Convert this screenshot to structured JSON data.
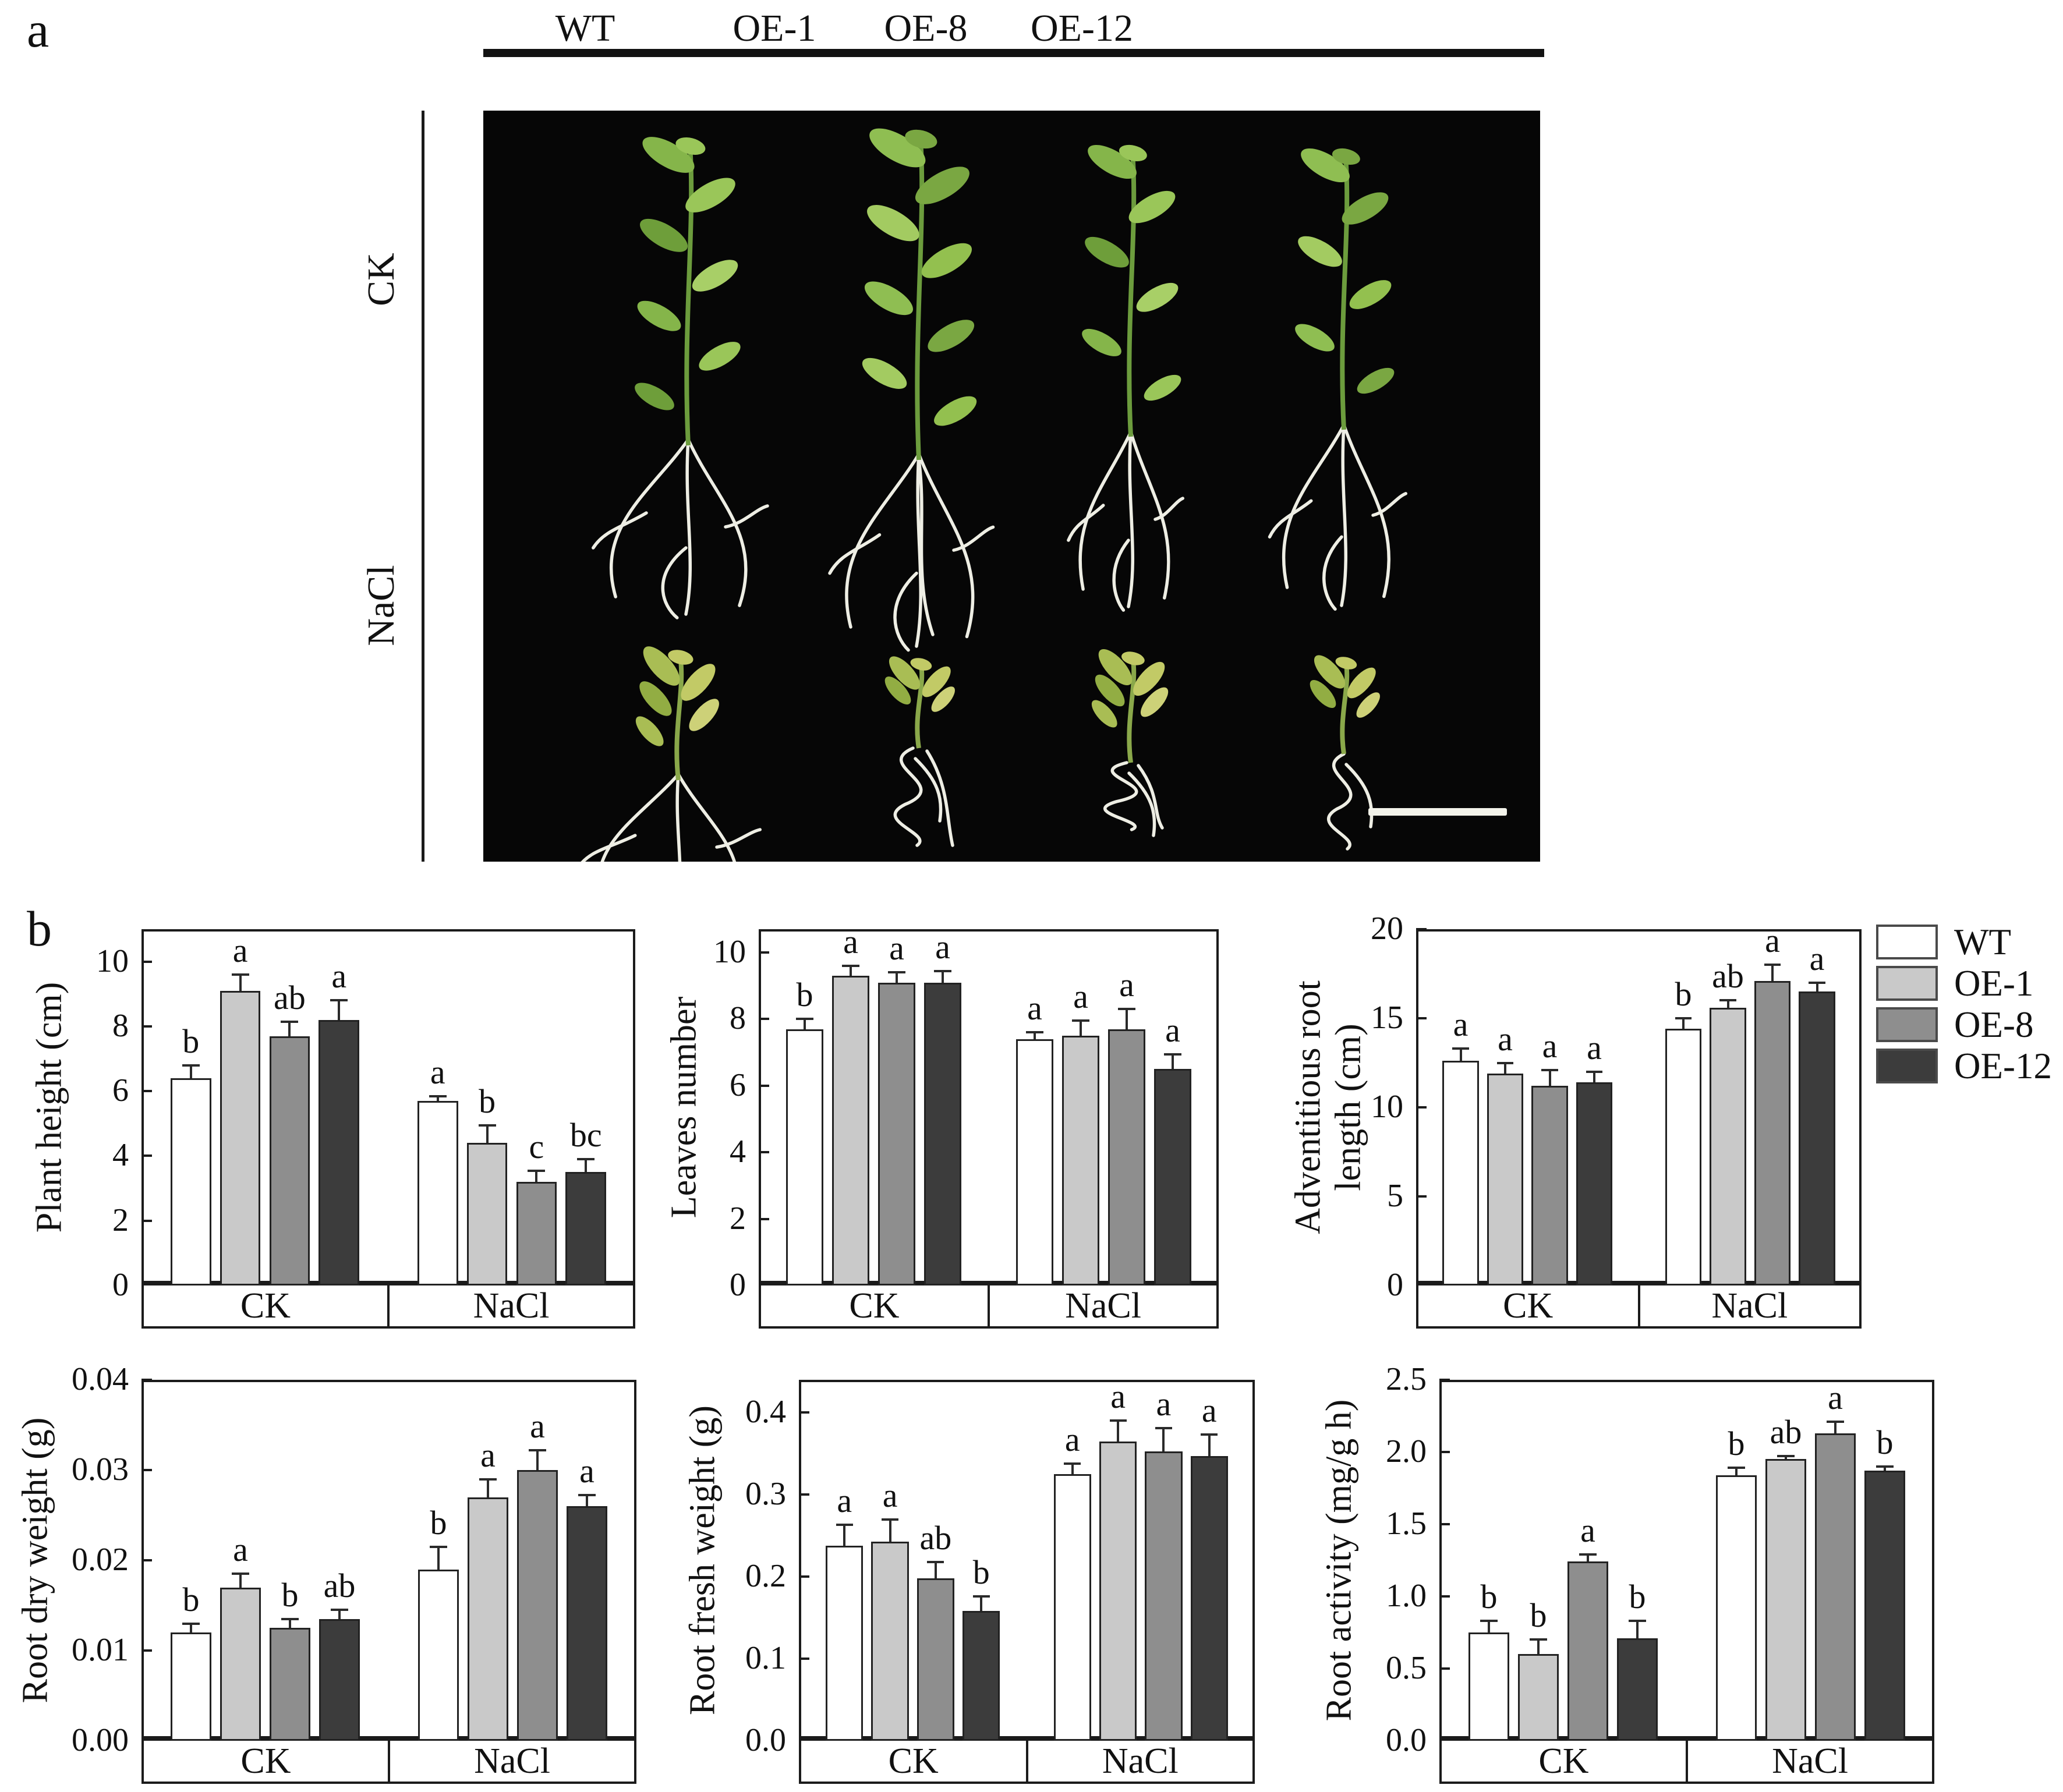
{
  "figure": {
    "panel_a_label": "a",
    "panel_b_label": "b"
  },
  "panel_a": {
    "column_labels": [
      "WT",
      "OE-1",
      "OE-8",
      "OE-12"
    ],
    "row_labels": [
      "CK",
      "NaCl"
    ],
    "photo_background": "#060606",
    "scale_bar_color": "#f3f3ea"
  },
  "legend": {
    "items": [
      {
        "label": "WT",
        "color": "#ffffff"
      },
      {
        "label": "OE-1",
        "color": "#c9c9c9"
      },
      {
        "label": "OE-8",
        "color": "#8e8e8e"
      },
      {
        "label": "OE-12",
        "color": "#3c3c3c"
      }
    ]
  },
  "chart_data": [
    {
      "type": "bar",
      "ylabel_lines": [
        "Plant height (cm)"
      ],
      "ylim": [
        0,
        11
      ],
      "yticks": [
        {
          "v": 0,
          "label": "0"
        },
        {
          "v": 2,
          "label": "2"
        },
        {
          "v": 4,
          "label": "4"
        },
        {
          "v": 6,
          "label": "6"
        },
        {
          "v": 8,
          "label": "8"
        },
        {
          "v": 10,
          "label": "10"
        }
      ],
      "groups": [
        "CK",
        "NaCl"
      ],
      "series": [
        "WT",
        "OE-1",
        "OE-8",
        "OE-12"
      ],
      "values": [
        [
          6.4,
          9.1,
          7.7,
          8.2
        ],
        [
          5.7,
          4.4,
          3.2,
          3.5
        ]
      ],
      "errors": [
        [
          0.4,
          0.5,
          0.45,
          0.6
        ],
        [
          0.15,
          0.55,
          0.35,
          0.4
        ]
      ],
      "sig_letters": [
        [
          "b",
          "a",
          "ab",
          "a"
        ],
        [
          "a",
          "b",
          "c",
          "bc"
        ]
      ]
    },
    {
      "type": "bar",
      "ylabel_lines": [
        "Leaves number"
      ],
      "ylim": [
        0,
        10.7
      ],
      "yticks": [
        {
          "v": 0,
          "label": "0"
        },
        {
          "v": 2,
          "label": "2"
        },
        {
          "v": 4,
          "label": "4"
        },
        {
          "v": 6,
          "label": "6"
        },
        {
          "v": 8,
          "label": "8"
        },
        {
          "v": 10,
          "label": "10"
        }
      ],
      "groups": [
        "CK",
        "NaCl"
      ],
      "series": [
        "WT",
        "OE-1",
        "OE-8",
        "OE-12"
      ],
      "values": [
        [
          7.7,
          9.3,
          9.1,
          9.1
        ],
        [
          7.4,
          7.5,
          7.7,
          6.5
        ]
      ],
      "errors": [
        [
          0.3,
          0.3,
          0.3,
          0.35
        ],
        [
          0.2,
          0.45,
          0.6,
          0.45
        ]
      ],
      "sig_letters": [
        [
          "b",
          "a",
          "a",
          "a"
        ],
        [
          "a",
          "a",
          "a",
          "a"
        ]
      ]
    },
    {
      "type": "bar",
      "ylabel_lines": [
        "Adventitious root",
        "length (cm)"
      ],
      "ylim": [
        0,
        20
      ],
      "yticks": [
        {
          "v": 0,
          "label": "0"
        },
        {
          "v": 5,
          "label": "5"
        },
        {
          "v": 10,
          "label": "10"
        },
        {
          "v": 15,
          "label": "15"
        },
        {
          "v": 20,
          "label": "20"
        }
      ],
      "groups": [
        "CK",
        "NaCl"
      ],
      "series": [
        "WT",
        "OE-1",
        "OE-8",
        "OE-12"
      ],
      "values": [
        [
          12.6,
          11.9,
          11.2,
          11.4
        ],
        [
          14.4,
          15.6,
          17.1,
          16.5
        ]
      ],
      "errors": [
        [
          0.7,
          0.6,
          0.9,
          0.6
        ],
        [
          0.6,
          0.4,
          0.9,
          0.5
        ]
      ],
      "sig_letters": [
        [
          "a",
          "a",
          "a",
          "a"
        ],
        [
          "b",
          "ab",
          "a",
          "a"
        ]
      ]
    },
    {
      "type": "bar",
      "ylabel_lines": [
        "Root dry weight (g)"
      ],
      "ylim": [
        0,
        0.04
      ],
      "yticks": [
        {
          "v": 0,
          "label": "0.00"
        },
        {
          "v": 0.01,
          "label": "0.01"
        },
        {
          "v": 0.02,
          "label": "0.02"
        },
        {
          "v": 0.03,
          "label": "0.03"
        },
        {
          "v": 0.04,
          "label": "0.04"
        }
      ],
      "groups": [
        "CK",
        "NaCl"
      ],
      "series": [
        "WT",
        "OE-1",
        "OE-8",
        "OE-12"
      ],
      "values": [
        [
          0.012,
          0.017,
          0.0125,
          0.0135
        ],
        [
          0.019,
          0.027,
          0.03,
          0.026
        ]
      ],
      "errors": [
        [
          0.001,
          0.0015,
          0.001,
          0.001
        ],
        [
          0.0025,
          0.002,
          0.0022,
          0.0012
        ]
      ],
      "sig_letters": [
        [
          "b",
          "a",
          "b",
          "ab"
        ],
        [
          "b",
          "a",
          "a",
          "a"
        ]
      ]
    },
    {
      "type": "bar",
      "ylabel_lines": [
        "Root fresh weight (g)"
      ],
      "ylim": [
        0,
        0.44
      ],
      "yticks": [
        {
          "v": 0,
          "label": "0.0"
        },
        {
          "v": 0.1,
          "label": "0.1"
        },
        {
          "v": 0.2,
          "label": "0.2"
        },
        {
          "v": 0.3,
          "label": "0.3"
        },
        {
          "v": 0.4,
          "label": "0.4"
        }
      ],
      "groups": [
        "CK",
        "NaCl"
      ],
      "series": [
        "WT",
        "OE-1",
        "OE-8",
        "OE-12"
      ],
      "values": [
        [
          0.238,
          0.243,
          0.198,
          0.158
        ],
        [
          0.325,
          0.365,
          0.353,
          0.347
        ]
      ],
      "errors": [
        [
          0.025,
          0.027,
          0.02,
          0.018
        ],
        [
          0.013,
          0.025,
          0.028,
          0.026
        ]
      ],
      "sig_letters": [
        [
          "a",
          "a",
          "ab",
          "b"
        ],
        [
          "a",
          "a",
          "a",
          "a"
        ]
      ]
    },
    {
      "type": "bar",
      "ylabel_lines": [
        "Root activity (mg/g h)"
      ],
      "ylim": [
        0,
        2.5
      ],
      "yticks": [
        {
          "v": 0,
          "label": "0.0"
        },
        {
          "v": 0.5,
          "label": "0.5"
        },
        {
          "v": 1.0,
          "label": "1.0"
        },
        {
          "v": 1.5,
          "label": "1.5"
        },
        {
          "v": 2.0,
          "label": "2.0"
        },
        {
          "v": 2.5,
          "label": "2.5"
        }
      ],
      "groups": [
        "CK",
        "NaCl"
      ],
      "series": [
        "WT",
        "OE-1",
        "OE-8",
        "OE-12"
      ],
      "values": [
        [
          0.75,
          0.6,
          1.24,
          0.71
        ],
        [
          1.84,
          1.95,
          2.13,
          1.87
        ]
      ],
      "errors": [
        [
          0.08,
          0.1,
          0.05,
          0.12
        ],
        [
          0.05,
          0.02,
          0.08,
          0.03
        ]
      ],
      "sig_letters": [
        [
          "b",
          "b",
          "a",
          "b"
        ],
        [
          "b",
          "ab",
          "a",
          "b"
        ]
      ]
    }
  ]
}
